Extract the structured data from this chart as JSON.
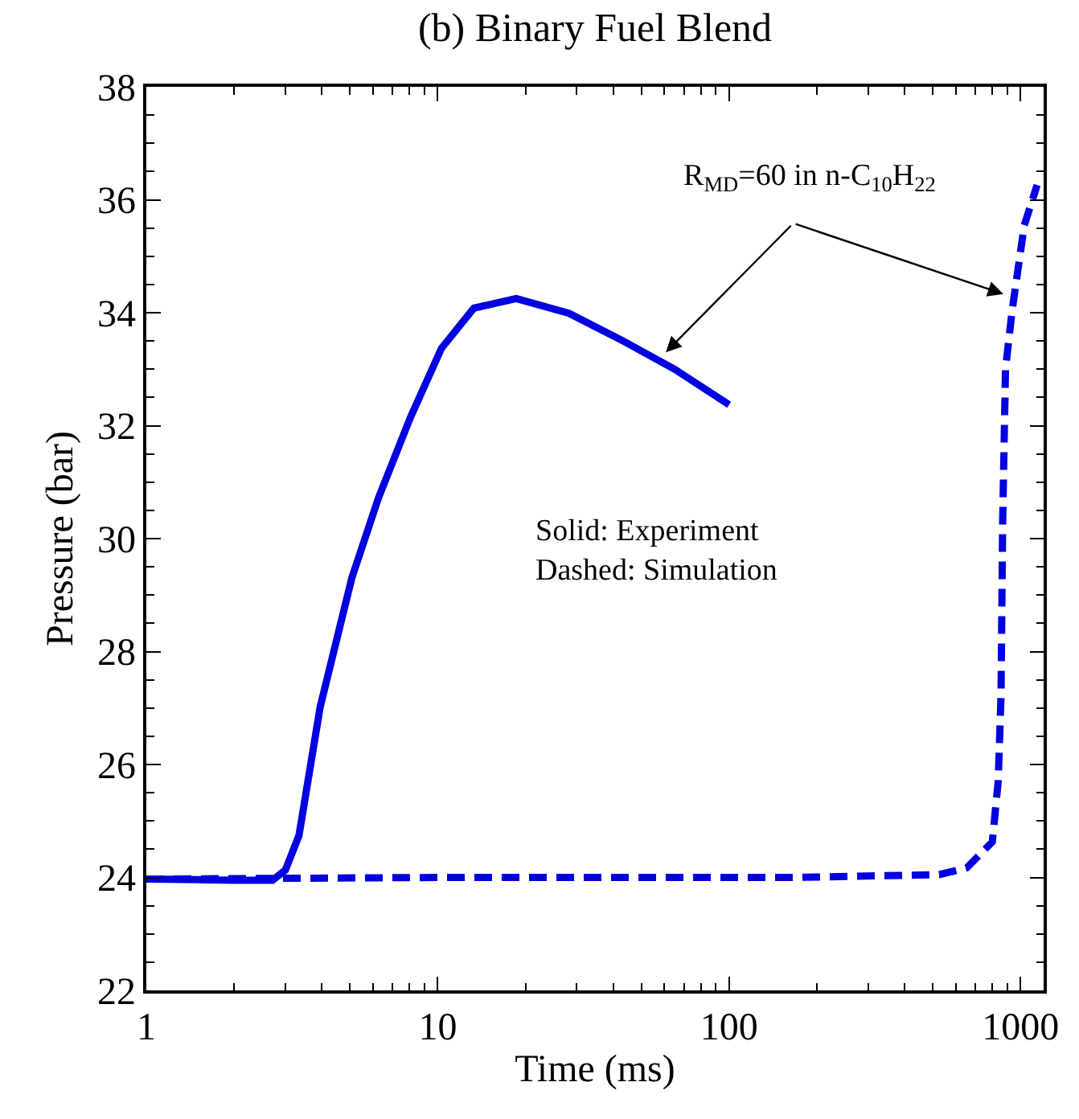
{
  "chart_data": {
    "type": "line",
    "title": "(b) Binary Fuel Blend",
    "xlabel": "Time (ms)",
    "ylabel": "Pressure (bar)",
    "log": "x",
    "xlim": [
      1,
      1200
    ],
    "xticks": [
      1,
      10,
      100,
      1000
    ],
    "ylim": [
      22,
      38
    ],
    "yticks": [
      22,
      24,
      26,
      28,
      30,
      32,
      34,
      36,
      38
    ],
    "marker": "none",
    "series": [
      {
        "color": "#0000e0",
        "line_style": "solid",
        "x": [
          1,
          1.5,
          2,
          2.71,
          3.0,
          3.34,
          3.95,
          5.07,
          6.26,
          8.05,
          10.3,
          13.3,
          18.6,
          28.2,
          42.9,
          65,
          100
        ],
        "values": [
          23.97,
          23.96,
          23.95,
          23.95,
          24.13,
          24.74,
          27.02,
          29.3,
          30.72,
          32.14,
          33.37,
          34.08,
          34.25,
          33.99,
          33.51,
          33.0,
          32.37
        ]
      },
      {
        "color": "#0000e0",
        "line_style": "dashed",
        "x": [
          1,
          10,
          100,
          171,
          526,
          654,
          800,
          838,
          857,
          868,
          888,
          935,
          1030,
          1140
        ],
        "values": [
          23.97,
          24.0,
          24.0,
          24.0,
          24.05,
          24.17,
          24.63,
          25.7,
          27.22,
          30.27,
          33.0,
          34.03,
          35.55,
          36.26
        ]
      }
    ],
    "annotations": [
      "R$_{MD}$=60 in n-C$_{10}$H$_{22}$",
      "Solid: Experiment\nDashed: Simulation"
    ]
  }
}
